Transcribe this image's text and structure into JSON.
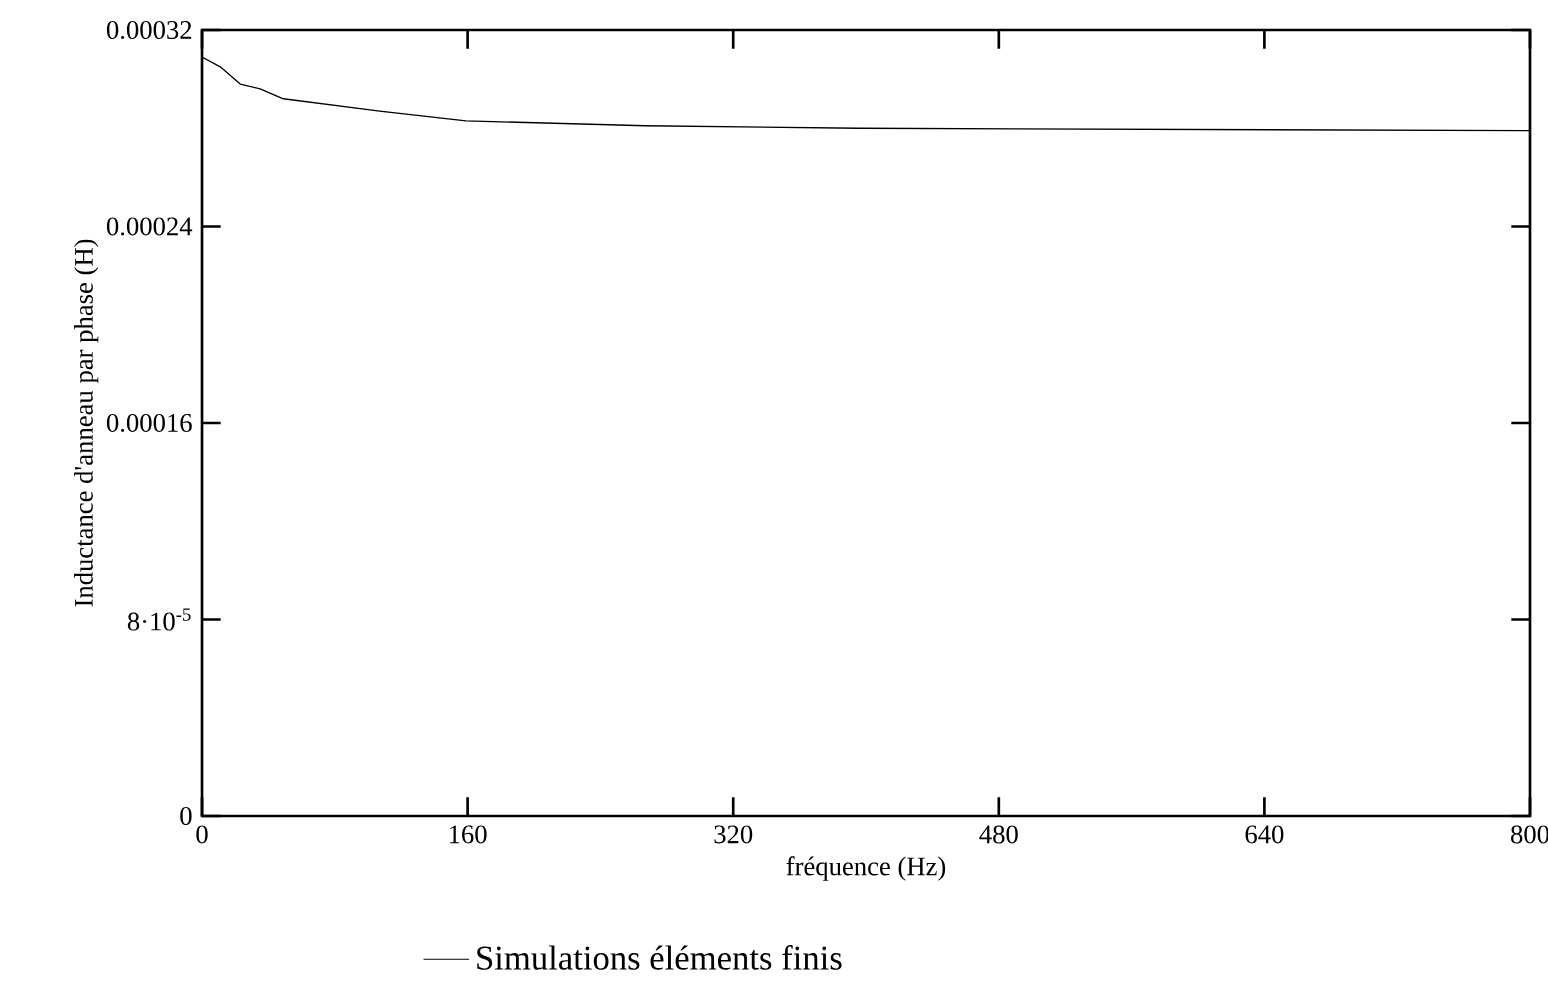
{
  "chart_data": {
    "type": "line",
    "xlabel": "fréquence (Hz)",
    "ylabel": "Inductance d'anneau par phase (H)",
    "xlim": [
      0,
      800
    ],
    "xticks": [
      0,
      160,
      320,
      480,
      640,
      800
    ],
    "ylim": [
      0,
      0.00032
    ],
    "yticks": [
      0,
      {
        "value": 8e-05,
        "label": "8·10$^{-5}$"
      },
      0.00016,
      0.00024,
      0.00032
    ],
    "legend": "bottom",
    "marker": "none",
    "line_style": "solid",
    "series": [
      {
        "name": "Simulations éléments finis",
        "color": "#000000",
        "x": [
          0,
          11,
          23,
          35,
          49,
          107,
          159,
          267,
          396,
          800
        ],
        "values": [
          0.000309,
          0.000305,
          0.000298,
          0.000296,
          0.000292,
          0.000287,
          0.000283,
          0.000281,
          0.00028,
          0.000279
        ]
      }
    ]
  }
}
